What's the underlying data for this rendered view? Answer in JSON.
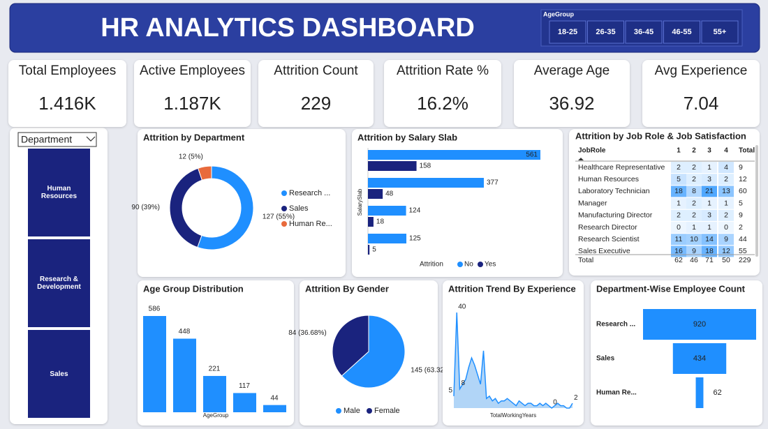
{
  "header": {
    "title": "HR ANALYTICS DASHBOARD",
    "filter": {
      "label": "AgeGroup",
      "options": [
        "18-25",
        "26-35",
        "36-45",
        "46-55",
        "55+"
      ]
    }
  },
  "kpis": [
    {
      "label": "Total Employees",
      "value": "1.416K"
    },
    {
      "label": "Active Employees",
      "value": "1.187K"
    },
    {
      "label": "Attrition Count",
      "value": "229"
    },
    {
      "label": "Attrition Rate %",
      "value": "16.2%"
    },
    {
      "label": "Average Age",
      "value": "36.92"
    },
    {
      "label": "Avg Experience",
      "value": "7.04"
    }
  ],
  "slicer": {
    "label": "Department",
    "options": [
      "Human Resources",
      "Research & Development",
      "Sales"
    ]
  },
  "chart_data": [
    {
      "type": "donut",
      "title": "Attrition by Department",
      "categories": [
        "Research ...",
        "Sales",
        "Human Re..."
      ],
      "values": [
        127,
        90,
        12
      ],
      "value_labels": [
        "127 (55%)",
        "90 (39%)",
        "12 (5%)"
      ],
      "colors": [
        "#1f8fff",
        "#1a237e",
        "#e86a3c"
      ]
    },
    {
      "type": "hbar",
      "title": "Attrition by Salary Slab",
      "y_label": "SalarySlab",
      "categories": [
        null,
        null,
        null,
        null
      ],
      "legend_title": "Attrition",
      "series": [
        {
          "name": "No",
          "color": "#1f8fff",
          "values": [
            561,
            377,
            124,
            125
          ]
        },
        {
          "name": "Yes",
          "color": "#1a237e",
          "values": [
            158,
            48,
            18,
            5
          ]
        }
      ]
    },
    {
      "type": "bar",
      "title": "Age Group Distribution",
      "x_label": "AgeGroup",
      "categories": [
        null,
        null,
        null,
        null,
        null
      ],
      "values": [
        586,
        448,
        221,
        117,
        44
      ],
      "color": "#1f8fff"
    },
    {
      "type": "pie",
      "title": "Attrition By Gender",
      "categories": [
        "Male",
        "Female"
      ],
      "values": [
        145,
        84
      ],
      "value_labels": [
        "145 (63.32%)",
        "84 (36.68%)"
      ],
      "colors": [
        "#1f8fff",
        "#1a237e"
      ]
    },
    {
      "type": "area",
      "title": "Attrition Trend By Experience",
      "x_label": "TotalWorkingYears",
      "color": "#1f8fff",
      "x": [
        0,
        1,
        2,
        3,
        4,
        5,
        6,
        7,
        8,
        9,
        10,
        11,
        12,
        13,
        14,
        15,
        16,
        17,
        18,
        19,
        20,
        21,
        22,
        23,
        24,
        25,
        26,
        27,
        28,
        29,
        30,
        31,
        32,
        33,
        34,
        35,
        36,
        37,
        38,
        39,
        40
      ],
      "values": [
        5,
        40,
        8,
        10,
        12,
        17,
        21,
        18,
        14,
        10,
        24,
        4,
        5,
        3,
        4,
        2,
        3,
        3,
        4,
        3,
        2,
        1,
        3,
        2,
        1,
        2,
        2,
        1,
        1,
        2,
        1,
        2,
        1,
        0,
        1,
        2,
        1,
        1,
        0,
        0,
        2
      ],
      "value_labels": [
        "5",
        "40",
        "8",
        null,
        null,
        null,
        null,
        null,
        null,
        null,
        null,
        null,
        null,
        null,
        null,
        null,
        null,
        null,
        null,
        null,
        null,
        null,
        null,
        null,
        null,
        null,
        null,
        null,
        null,
        null,
        null,
        null,
        null,
        "0",
        null,
        null,
        null,
        null,
        null,
        null,
        "2"
      ]
    },
    {
      "type": "funnel",
      "title": "Department-Wise Employee Count",
      "categories": [
        "Research ...",
        "Sales",
        "Human Re..."
      ],
      "values": [
        920,
        434,
        62
      ],
      "color": "#1f8fff"
    }
  ],
  "matrix": {
    "title": "Attrition by Job Role & Job Satisfaction",
    "columns": [
      "JobRole",
      "1",
      "2",
      "3",
      "4",
      "Total"
    ],
    "rows": [
      [
        "Healthcare Representative",
        2,
        2,
        1,
        4,
        9
      ],
      [
        "Human Resources",
        5,
        2,
        3,
        2,
        12
      ],
      [
        "Laboratory Technician",
        18,
        8,
        21,
        13,
        60
      ],
      [
        "Manager",
        1,
        2,
        1,
        1,
        5
      ],
      [
        "Manufacturing Director",
        2,
        2,
        3,
        2,
        9
      ],
      [
        "Research Director",
        0,
        1,
        1,
        0,
        2
      ],
      [
        "Research Scientist",
        11,
        10,
        14,
        9,
        44
      ],
      [
        "Sales Executive",
        16,
        9,
        18,
        12,
        55
      ]
    ],
    "total": [
      "Total",
      62,
      46,
      71,
      50,
      229
    ]
  }
}
